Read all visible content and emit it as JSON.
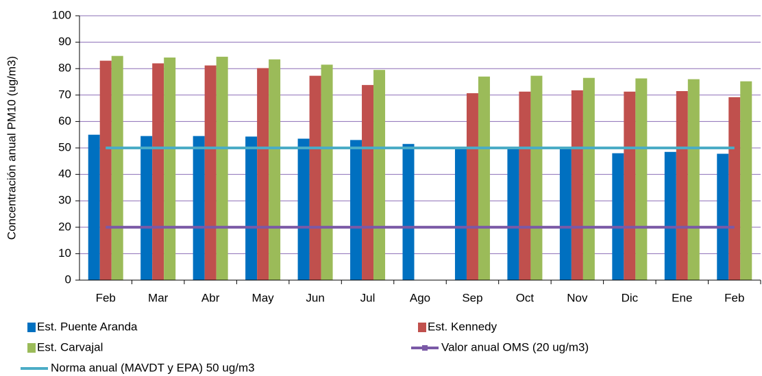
{
  "chart_data": {
    "type": "bar",
    "ylabel": "Concentración anual PM10 (ug/m3)",
    "categories": [
      "Feb",
      "Mar",
      "Abr",
      "May",
      "Jun",
      "Jul",
      "Ago",
      "Sep",
      "Oct",
      "Nov",
      "Dic",
      "Ene",
      "Feb"
    ],
    "series": [
      {
        "name": "Est. Puente Aranda",
        "color": "#0070c0",
        "type": "bar",
        "values": [
          55,
          54.5,
          54.5,
          54.3,
          53.5,
          53,
          51.5,
          50,
          50,
          50,
          48,
          48.5,
          47.8
        ]
      },
      {
        "name": "Est. Kennedy",
        "color": "#c0504d",
        "type": "bar",
        "values": [
          83,
          82,
          81.2,
          80.2,
          77.3,
          73.8,
          null,
          70.7,
          71.3,
          71.8,
          71.3,
          71.5,
          69.2
        ]
      },
      {
        "name": "Est. Carvajal",
        "color": "#9bbb59",
        "type": "bar",
        "values": [
          84.8,
          84.2,
          84.5,
          83.5,
          81.5,
          79.5,
          null,
          77,
          77.3,
          76.5,
          76.3,
          76,
          75.2
        ]
      },
      {
        "name": "Valor anual OMS (20 ug/m3)",
        "color": "#7a59a6",
        "type": "line",
        "values": [
          20,
          20,
          20,
          20,
          20,
          20,
          20,
          20,
          20,
          20,
          20,
          20,
          20
        ]
      },
      {
        "name": "Norma anual (MAVDT y EPA) 50 ug/m3",
        "color": "#4bacc6",
        "type": "line",
        "values": [
          50,
          50,
          50,
          50,
          50,
          50,
          50,
          50,
          50,
          50,
          50,
          50,
          50
        ]
      }
    ],
    "ylim": [
      0,
      100
    ],
    "yticks": [
      0,
      10,
      20,
      30,
      40,
      50,
      60,
      70,
      80,
      90,
      100
    ],
    "grid": true,
    "legend": "bottom"
  }
}
